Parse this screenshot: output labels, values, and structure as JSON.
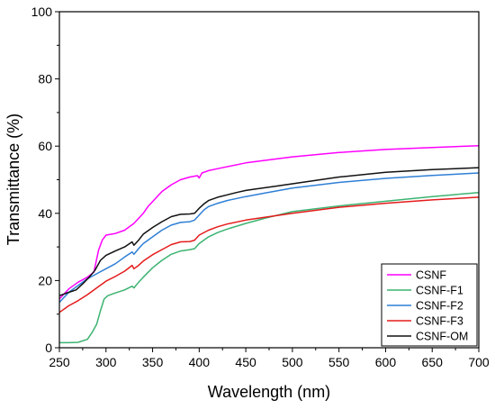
{
  "chart_data": {
    "type": "line",
    "xlabel": "Wavelength (nm)",
    "ylabel": "Transmittance (%)",
    "xlim": [
      250,
      700
    ],
    "ylim": [
      0,
      100
    ],
    "xticks": [
      250,
      300,
      350,
      400,
      450,
      500,
      550,
      600,
      650,
      700
    ],
    "yticks": [
      0,
      20,
      40,
      60,
      80,
      100
    ],
    "x_tick_labels": [
      "250",
      "300",
      "350",
      "400",
      "450",
      "500",
      "550",
      "600",
      "650",
      "700"
    ],
    "y_tick_labels": [
      "0",
      "20",
      "40",
      "60",
      "80",
      "100"
    ],
    "grid": false,
    "legend_position": "bottom-right",
    "series": [
      {
        "name": "CSNF",
        "color": "#ff00ff",
        "points": [
          [
            250,
            14.5
          ],
          [
            260,
            17.5
          ],
          [
            270,
            19.5
          ],
          [
            280,
            21
          ],
          [
            287,
            22.5
          ],
          [
            292,
            29
          ],
          [
            296,
            32
          ],
          [
            300,
            33.5
          ],
          [
            310,
            34
          ],
          [
            320,
            35
          ],
          [
            330,
            37
          ],
          [
            335,
            38.5
          ],
          [
            340,
            40
          ],
          [
            345,
            42
          ],
          [
            350,
            43.5
          ],
          [
            360,
            46.5
          ],
          [
            370,
            48.5
          ],
          [
            380,
            50
          ],
          [
            390,
            50.8
          ],
          [
            398,
            51.2
          ],
          [
            400,
            50.5
          ],
          [
            403,
            52
          ],
          [
            410,
            52.7
          ],
          [
            420,
            53.3
          ],
          [
            450,
            55
          ],
          [
            500,
            56.8
          ],
          [
            550,
            58.1
          ],
          [
            600,
            59
          ],
          [
            650,
            59.6
          ],
          [
            700,
            60.1
          ]
        ]
      },
      {
        "name": "CSNF-F1",
        "color": "#3cb371",
        "points": [
          [
            250,
            1.5
          ],
          [
            260,
            1.5
          ],
          [
            270,
            1.6
          ],
          [
            280,
            2.5
          ],
          [
            285,
            4.5
          ],
          [
            290,
            7
          ],
          [
            294,
            11
          ],
          [
            298,
            14.5
          ],
          [
            302,
            15.5
          ],
          [
            310,
            16.3
          ],
          [
            320,
            17.2
          ],
          [
            328,
            18.3
          ],
          [
            330,
            17.8
          ],
          [
            335,
            19.5
          ],
          [
            340,
            21
          ],
          [
            350,
            23.8
          ],
          [
            360,
            26
          ],
          [
            370,
            27.8
          ],
          [
            380,
            28.8
          ],
          [
            390,
            29.2
          ],
          [
            395,
            29.5
          ],
          [
            400,
            31
          ],
          [
            410,
            33
          ],
          [
            420,
            34.3
          ],
          [
            430,
            35.3
          ],
          [
            450,
            37
          ],
          [
            470,
            38.5
          ],
          [
            500,
            40.5
          ],
          [
            550,
            42.2
          ],
          [
            600,
            43.6
          ],
          [
            650,
            45
          ],
          [
            700,
            46.2
          ]
        ]
      },
      {
        "name": "CSNF-F2",
        "color": "#2f7fd6",
        "points": [
          [
            250,
            13.5
          ],
          [
            260,
            16.5
          ],
          [
            270,
            18.5
          ],
          [
            280,
            20.5
          ],
          [
            290,
            22
          ],
          [
            300,
            23.5
          ],
          [
            310,
            25
          ],
          [
            320,
            27
          ],
          [
            328,
            28.5
          ],
          [
            330,
            27.8
          ],
          [
            335,
            29.5
          ],
          [
            340,
            31
          ],
          [
            350,
            33
          ],
          [
            360,
            35
          ],
          [
            370,
            36.5
          ],
          [
            380,
            37.3
          ],
          [
            390,
            37.5
          ],
          [
            395,
            38
          ],
          [
            400,
            39.5
          ],
          [
            405,
            41
          ],
          [
            410,
            42
          ],
          [
            420,
            43
          ],
          [
            430,
            43.8
          ],
          [
            450,
            45
          ],
          [
            470,
            46
          ],
          [
            500,
            47.5
          ],
          [
            550,
            49.2
          ],
          [
            600,
            50.4
          ],
          [
            650,
            51.3
          ],
          [
            700,
            52
          ]
        ]
      },
      {
        "name": "CSNF-F3",
        "color": "#e51b1b",
        "points": [
          [
            250,
            10.5
          ],
          [
            260,
            12.5
          ],
          [
            270,
            14
          ],
          [
            280,
            15.8
          ],
          [
            290,
            17.8
          ],
          [
            300,
            19.8
          ],
          [
            310,
            21.2
          ],
          [
            320,
            22.8
          ],
          [
            328,
            24.5
          ],
          [
            330,
            23.5
          ],
          [
            335,
            24.5
          ],
          [
            340,
            25.8
          ],
          [
            350,
            27.7
          ],
          [
            360,
            29.2
          ],
          [
            370,
            30.7
          ],
          [
            380,
            31.5
          ],
          [
            390,
            31.6
          ],
          [
            395,
            32
          ],
          [
            400,
            33.5
          ],
          [
            410,
            35
          ],
          [
            420,
            36
          ],
          [
            430,
            36.8
          ],
          [
            450,
            38
          ],
          [
            470,
            38.8
          ],
          [
            500,
            40
          ],
          [
            550,
            41.8
          ],
          [
            600,
            43
          ],
          [
            650,
            44
          ],
          [
            700,
            44.8
          ]
        ]
      },
      {
        "name": "CSNF-OM",
        "color": "#111111",
        "points": [
          [
            250,
            15.5
          ],
          [
            260,
            16.5
          ],
          [
            268,
            17.2
          ],
          [
            275,
            19
          ],
          [
            282,
            21
          ],
          [
            288,
            23
          ],
          [
            294,
            26
          ],
          [
            300,
            27.5
          ],
          [
            310,
            28.8
          ],
          [
            320,
            30
          ],
          [
            328,
            31.5
          ],
          [
            330,
            30.5
          ],
          [
            335,
            32
          ],
          [
            340,
            33.8
          ],
          [
            350,
            35.8
          ],
          [
            360,
            37.5
          ],
          [
            370,
            39
          ],
          [
            380,
            39.7
          ],
          [
            390,
            39.8
          ],
          [
            395,
            40
          ],
          [
            400,
            41.5
          ],
          [
            405,
            42.8
          ],
          [
            410,
            43.8
          ],
          [
            420,
            44.8
          ],
          [
            430,
            45.5
          ],
          [
            440,
            46.2
          ],
          [
            450,
            46.8
          ],
          [
            460,
            47.2
          ],
          [
            480,
            48
          ],
          [
            500,
            48.8
          ],
          [
            550,
            50.8
          ],
          [
            600,
            52.2
          ],
          [
            650,
            53
          ],
          [
            700,
            53.6
          ]
        ]
      }
    ]
  }
}
